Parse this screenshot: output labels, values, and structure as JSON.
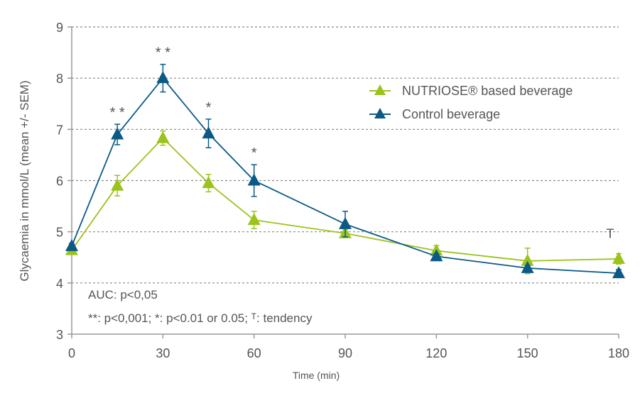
{
  "chart_data": {
    "type": "line",
    "title": "",
    "xlabel": "Time (min)",
    "ylabel": "Glycaemia in mmol/L (mean +/- SEM)",
    "xlim": [
      0,
      180
    ],
    "ylim": [
      3,
      9
    ],
    "x_ticks": [
      0,
      30,
      60,
      90,
      120,
      150,
      180
    ],
    "y_ticks": [
      3,
      4,
      5,
      6,
      7,
      8,
      9
    ],
    "grid": "horizontal dotted",
    "legend_position": "top-right",
    "x": [
      0,
      15,
      30,
      45,
      60,
      90,
      120,
      150,
      180
    ],
    "series": [
      {
        "name": "NUTRIOSE® based beverage",
        "color": "#9bc31c",
        "marker": "triangle",
        "values": [
          4.64,
          5.9,
          6.83,
          5.95,
          5.23,
          4.97,
          4.63,
          4.43,
          4.47
        ],
        "sem": [
          0.05,
          0.2,
          0.14,
          0.17,
          0.17,
          0.08,
          0.1,
          0.25,
          0.1
        ]
      },
      {
        "name": "Control beverage",
        "color": "#0b5a86",
        "marker": "triangle",
        "values": [
          4.72,
          6.9,
          8.0,
          6.92,
          6.0,
          5.15,
          4.52,
          4.29,
          4.19
        ],
        "sem": [
          0.05,
          0.2,
          0.27,
          0.28,
          0.31,
          0.25,
          0.05,
          0.05,
          0.07
        ]
      }
    ],
    "significance_marks": [
      {
        "x": 15,
        "label": "* *"
      },
      {
        "x": 30,
        "label": "* *"
      },
      {
        "x": 45,
        "label": "*"
      },
      {
        "x": 60,
        "label": "*"
      },
      {
        "x": 180,
        "label": "T"
      }
    ],
    "annotations": [
      "AUC: p<0,05",
      "**: p<0,001; *: p<0.01 or 0.05; ᵀ: tendency"
    ]
  }
}
